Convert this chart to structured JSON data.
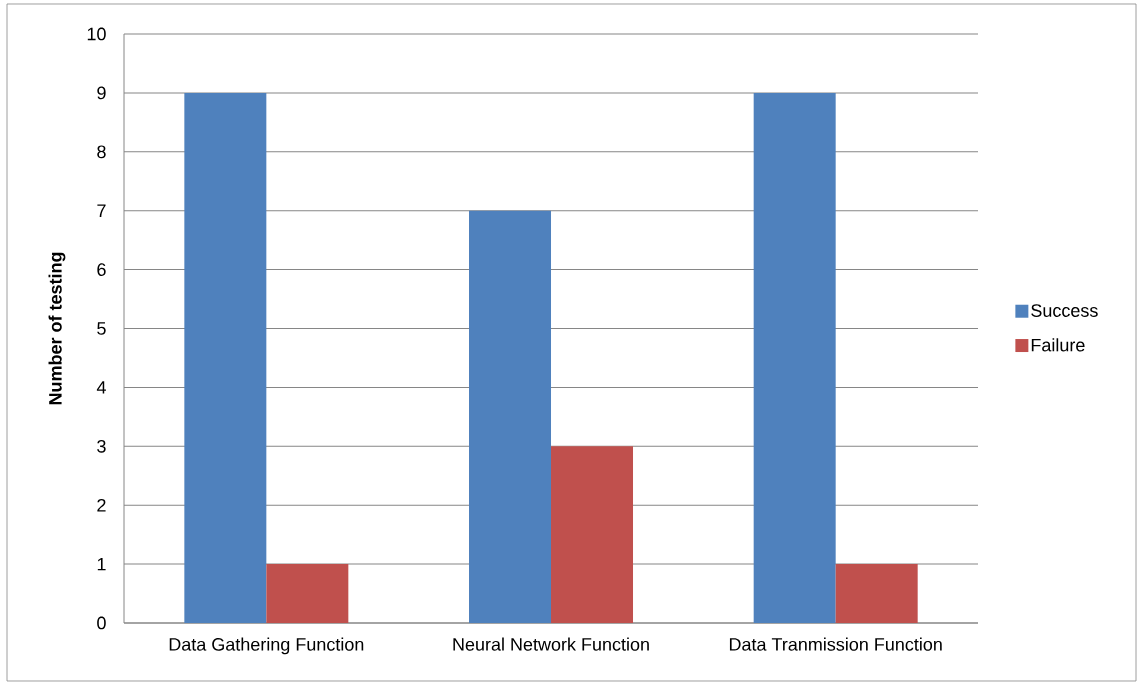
{
  "chart_data": {
    "type": "bar",
    "ylabel": "Number of testing",
    "categories": [
      "Data Gathering Function",
      "Neural Network Function",
      "Data Tranmission Function"
    ],
    "series": [
      {
        "name": "Success",
        "color": "#4f81bd",
        "values": [
          9,
          7,
          9
        ]
      },
      {
        "name": "Failure",
        "color": "#c0504d",
        "values": [
          1,
          3,
          1
        ]
      }
    ],
    "ylim": [
      0,
      10
    ],
    "yticks": [
      0,
      1,
      2,
      3,
      4,
      5,
      6,
      7,
      8,
      9,
      10
    ],
    "grid": "y",
    "legend": "right"
  }
}
